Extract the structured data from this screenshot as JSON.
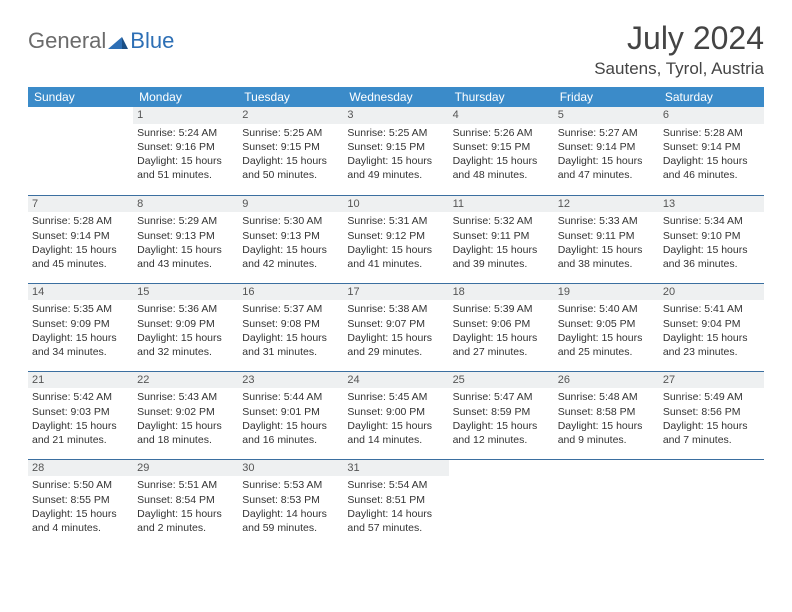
{
  "logo": {
    "text1": "General",
    "text2": "Blue"
  },
  "title": "July 2024",
  "location": "Sautens, Tyrol, Austria",
  "colors": {
    "header_bg": "#3b8bc9",
    "header_text": "#ffffff",
    "row_border": "#3b6fa0",
    "daynum_bg": "#eef0f1",
    "logo_gray": "#6b6b6b",
    "logo_blue": "#2d6fb5",
    "body_text": "#333333"
  },
  "weekdays": [
    "Sunday",
    "Monday",
    "Tuesday",
    "Wednesday",
    "Thursday",
    "Friday",
    "Saturday"
  ],
  "weeks": [
    [
      {
        "day": "",
        "sunrise": "",
        "sunset": "",
        "daylight": ""
      },
      {
        "day": "1",
        "sunrise": "Sunrise: 5:24 AM",
        "sunset": "Sunset: 9:16 PM",
        "daylight": "Daylight: 15 hours and 51 minutes."
      },
      {
        "day": "2",
        "sunrise": "Sunrise: 5:25 AM",
        "sunset": "Sunset: 9:15 PM",
        "daylight": "Daylight: 15 hours and 50 minutes."
      },
      {
        "day": "3",
        "sunrise": "Sunrise: 5:25 AM",
        "sunset": "Sunset: 9:15 PM",
        "daylight": "Daylight: 15 hours and 49 minutes."
      },
      {
        "day": "4",
        "sunrise": "Sunrise: 5:26 AM",
        "sunset": "Sunset: 9:15 PM",
        "daylight": "Daylight: 15 hours and 48 minutes."
      },
      {
        "day": "5",
        "sunrise": "Sunrise: 5:27 AM",
        "sunset": "Sunset: 9:14 PM",
        "daylight": "Daylight: 15 hours and 47 minutes."
      },
      {
        "day": "6",
        "sunrise": "Sunrise: 5:28 AM",
        "sunset": "Sunset: 9:14 PM",
        "daylight": "Daylight: 15 hours and 46 minutes."
      }
    ],
    [
      {
        "day": "7",
        "sunrise": "Sunrise: 5:28 AM",
        "sunset": "Sunset: 9:14 PM",
        "daylight": "Daylight: 15 hours and 45 minutes."
      },
      {
        "day": "8",
        "sunrise": "Sunrise: 5:29 AM",
        "sunset": "Sunset: 9:13 PM",
        "daylight": "Daylight: 15 hours and 43 minutes."
      },
      {
        "day": "9",
        "sunrise": "Sunrise: 5:30 AM",
        "sunset": "Sunset: 9:13 PM",
        "daylight": "Daylight: 15 hours and 42 minutes."
      },
      {
        "day": "10",
        "sunrise": "Sunrise: 5:31 AM",
        "sunset": "Sunset: 9:12 PM",
        "daylight": "Daylight: 15 hours and 41 minutes."
      },
      {
        "day": "11",
        "sunrise": "Sunrise: 5:32 AM",
        "sunset": "Sunset: 9:11 PM",
        "daylight": "Daylight: 15 hours and 39 minutes."
      },
      {
        "day": "12",
        "sunrise": "Sunrise: 5:33 AM",
        "sunset": "Sunset: 9:11 PM",
        "daylight": "Daylight: 15 hours and 38 minutes."
      },
      {
        "day": "13",
        "sunrise": "Sunrise: 5:34 AM",
        "sunset": "Sunset: 9:10 PM",
        "daylight": "Daylight: 15 hours and 36 minutes."
      }
    ],
    [
      {
        "day": "14",
        "sunrise": "Sunrise: 5:35 AM",
        "sunset": "Sunset: 9:09 PM",
        "daylight": "Daylight: 15 hours and 34 minutes."
      },
      {
        "day": "15",
        "sunrise": "Sunrise: 5:36 AM",
        "sunset": "Sunset: 9:09 PM",
        "daylight": "Daylight: 15 hours and 32 minutes."
      },
      {
        "day": "16",
        "sunrise": "Sunrise: 5:37 AM",
        "sunset": "Sunset: 9:08 PM",
        "daylight": "Daylight: 15 hours and 31 minutes."
      },
      {
        "day": "17",
        "sunrise": "Sunrise: 5:38 AM",
        "sunset": "Sunset: 9:07 PM",
        "daylight": "Daylight: 15 hours and 29 minutes."
      },
      {
        "day": "18",
        "sunrise": "Sunrise: 5:39 AM",
        "sunset": "Sunset: 9:06 PM",
        "daylight": "Daylight: 15 hours and 27 minutes."
      },
      {
        "day": "19",
        "sunrise": "Sunrise: 5:40 AM",
        "sunset": "Sunset: 9:05 PM",
        "daylight": "Daylight: 15 hours and 25 minutes."
      },
      {
        "day": "20",
        "sunrise": "Sunrise: 5:41 AM",
        "sunset": "Sunset: 9:04 PM",
        "daylight": "Daylight: 15 hours and 23 minutes."
      }
    ],
    [
      {
        "day": "21",
        "sunrise": "Sunrise: 5:42 AM",
        "sunset": "Sunset: 9:03 PM",
        "daylight": "Daylight: 15 hours and 21 minutes."
      },
      {
        "day": "22",
        "sunrise": "Sunrise: 5:43 AM",
        "sunset": "Sunset: 9:02 PM",
        "daylight": "Daylight: 15 hours and 18 minutes."
      },
      {
        "day": "23",
        "sunrise": "Sunrise: 5:44 AM",
        "sunset": "Sunset: 9:01 PM",
        "daylight": "Daylight: 15 hours and 16 minutes."
      },
      {
        "day": "24",
        "sunrise": "Sunrise: 5:45 AM",
        "sunset": "Sunset: 9:00 PM",
        "daylight": "Daylight: 15 hours and 14 minutes."
      },
      {
        "day": "25",
        "sunrise": "Sunrise: 5:47 AM",
        "sunset": "Sunset: 8:59 PM",
        "daylight": "Daylight: 15 hours and 12 minutes."
      },
      {
        "day": "26",
        "sunrise": "Sunrise: 5:48 AM",
        "sunset": "Sunset: 8:58 PM",
        "daylight": "Daylight: 15 hours and 9 minutes."
      },
      {
        "day": "27",
        "sunrise": "Sunrise: 5:49 AM",
        "sunset": "Sunset: 8:56 PM",
        "daylight": "Daylight: 15 hours and 7 minutes."
      }
    ],
    [
      {
        "day": "28",
        "sunrise": "Sunrise: 5:50 AM",
        "sunset": "Sunset: 8:55 PM",
        "daylight": "Daylight: 15 hours and 4 minutes."
      },
      {
        "day": "29",
        "sunrise": "Sunrise: 5:51 AM",
        "sunset": "Sunset: 8:54 PM",
        "daylight": "Daylight: 15 hours and 2 minutes."
      },
      {
        "day": "30",
        "sunrise": "Sunrise: 5:53 AM",
        "sunset": "Sunset: 8:53 PM",
        "daylight": "Daylight: 14 hours and 59 minutes."
      },
      {
        "day": "31",
        "sunrise": "Sunrise: 5:54 AM",
        "sunset": "Sunset: 8:51 PM",
        "daylight": "Daylight: 14 hours and 57 minutes."
      },
      {
        "day": "",
        "sunrise": "",
        "sunset": "",
        "daylight": ""
      },
      {
        "day": "",
        "sunrise": "",
        "sunset": "",
        "daylight": ""
      },
      {
        "day": "",
        "sunrise": "",
        "sunset": "",
        "daylight": ""
      }
    ]
  ]
}
